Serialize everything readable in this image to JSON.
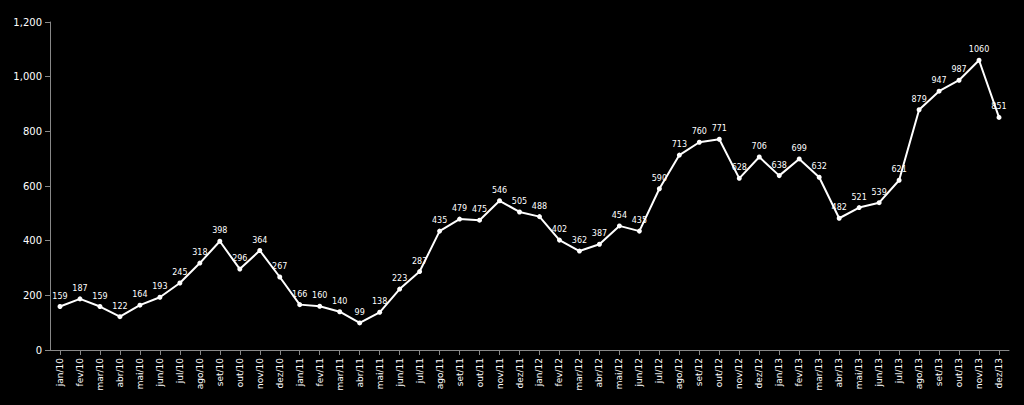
{
  "chart_data": {
    "type": "line",
    "categories": [
      "jan/10",
      "fev/10",
      "mar/10",
      "abr/10",
      "mai/10",
      "jun/10",
      "jul/10",
      "ago/10",
      "set/10",
      "out/10",
      "nov/10",
      "dez/10",
      "jan/11",
      "fev/11",
      "mar/11",
      "abr/11",
      "mai/11",
      "jun/11",
      "jul/11",
      "ago/11",
      "set/11",
      "out/11",
      "nov/11",
      "dez/11",
      "jan/12",
      "fev/12",
      "mar/12",
      "abr/12",
      "mai/12",
      "jun/12",
      "jul/12",
      "ago/12",
      "set/12",
      "out/12",
      "nov/12",
      "dez/12",
      "jan/13",
      "fev/13",
      "mar/13",
      "abr/13",
      "mai/13",
      "jun/13",
      "jul/13",
      "ago/13",
      "set/13",
      "out/13",
      "nov/13",
      "dez/13"
    ],
    "values": [
      159,
      187,
      159,
      122,
      164,
      193,
      245,
      318,
      398,
      296,
      364,
      267,
      166,
      160,
      140,
      99,
      138,
      223,
      287,
      435,
      479,
      475,
      546,
      505,
      488,
      402,
      362,
      387,
      454,
      435,
      590,
      713,
      760,
      771,
      628,
      706,
      638,
      699,
      632,
      482,
      521,
      539,
      621,
      879,
      947,
      987,
      1060,
      851
    ],
    "color": "#ffffff",
    "marker": "circle",
    "data_labels": true,
    "grid": false,
    "ylim": [
      0,
      1200
    ],
    "yticks": [
      0,
      200,
      400,
      600,
      800,
      1000,
      1200
    ]
  }
}
